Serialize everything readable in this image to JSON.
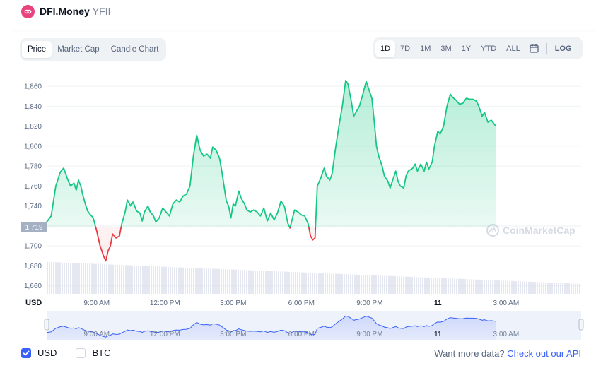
{
  "header": {
    "coin_name": "DFI.Money",
    "coin_symbol": "YFII"
  },
  "chart_tabs": [
    {
      "label": "Price",
      "active": true
    },
    {
      "label": "Market Cap",
      "active": false
    },
    {
      "label": "Candle Chart",
      "active": false
    }
  ],
  "range_tabs": [
    {
      "label": "1D",
      "active": true
    },
    {
      "label": "7D",
      "active": false
    },
    {
      "label": "1M",
      "active": false
    },
    {
      "label": "3M",
      "active": false
    },
    {
      "label": "1Y",
      "active": false
    },
    {
      "label": "YTD",
      "active": false
    },
    {
      "label": "ALL",
      "active": false
    }
  ],
  "log_label": "LOG",
  "icons": {
    "logo": "dfi-money-logo-icon",
    "calendar": "calendar-icon",
    "checkmark": "checkmark-icon"
  },
  "colors": {
    "up": "#16c784",
    "down": "#ea3943",
    "volume": "#cfd6e4",
    "navigator": "#3861fb",
    "accent": "#3861fb"
  },
  "watermark": "CoinMarketCap",
  "footer": {
    "currencies": [
      {
        "label": "USD",
        "checked": true
      },
      {
        "label": "BTC",
        "checked": false
      }
    ],
    "more_data_text": "Want more data?",
    "api_link_text": "Check out our API"
  },
  "chart_data": {
    "type": "area",
    "ylabel": "USD",
    "y_ticks": [
      1660,
      1680,
      1700,
      1720,
      1740,
      1760,
      1780,
      1800,
      1820,
      1840,
      1860
    ],
    "y_tick_labels": [
      "1,660",
      "1,680",
      "1,700",
      "1,720",
      "1,740",
      "1,760",
      "1,780",
      "1,800",
      "1,820",
      "1,840",
      "1,860"
    ],
    "ylim": [
      1652,
      1870
    ],
    "baseline": 1719,
    "baseline_label": "1,719",
    "x_ticks": [
      {
        "label": "9:00 AM",
        "t": 2.5,
        "bold": false
      },
      {
        "label": "12:00 PM",
        "t": 5.5,
        "bold": false
      },
      {
        "label": "3:00 PM",
        "t": 8.5,
        "bold": false
      },
      {
        "label": "6:00 PM",
        "t": 11.5,
        "bold": false
      },
      {
        "label": "9:00 PM",
        "t": 14.5,
        "bold": false
      },
      {
        "label": "11",
        "t": 17.5,
        "bold": true
      },
      {
        "label": "3:00 AM",
        "t": 20.5,
        "bold": false
      }
    ],
    "xlim": [
      0.3,
      23.8
    ],
    "grid": true,
    "price": [
      [
        0.3,
        1724
      ],
      [
        0.5,
        1730
      ],
      [
        0.7,
        1760
      ],
      [
        0.9,
        1774
      ],
      [
        1.05,
        1778
      ],
      [
        1.2,
        1768
      ],
      [
        1.35,
        1760
      ],
      [
        1.5,
        1763
      ],
      [
        1.6,
        1756
      ],
      [
        1.7,
        1766
      ],
      [
        1.8,
        1760
      ],
      [
        1.9,
        1750
      ],
      [
        2.0,
        1742
      ],
      [
        2.1,
        1735
      ],
      [
        2.2,
        1732
      ],
      [
        2.35,
        1728
      ],
      [
        2.5,
        1715
      ],
      [
        2.65,
        1700
      ],
      [
        2.8,
        1690
      ],
      [
        2.9,
        1685
      ],
      [
        3.0,
        1695
      ],
      [
        3.1,
        1700
      ],
      [
        3.2,
        1712
      ],
      [
        3.35,
        1708
      ],
      [
        3.5,
        1710
      ],
      [
        3.6,
        1722
      ],
      [
        3.75,
        1734
      ],
      [
        3.85,
        1746
      ],
      [
        4.0,
        1740
      ],
      [
        4.1,
        1744
      ],
      [
        4.25,
        1735
      ],
      [
        4.4,
        1733
      ],
      [
        4.5,
        1725
      ],
      [
        4.6,
        1734
      ],
      [
        4.75,
        1740
      ],
      [
        4.85,
        1734
      ],
      [
        5.0,
        1730
      ],
      [
        5.1,
        1724
      ],
      [
        5.25,
        1728
      ],
      [
        5.4,
        1738
      ],
      [
        5.55,
        1734
      ],
      [
        5.7,
        1730
      ],
      [
        5.85,
        1742
      ],
      [
        6.0,
        1746
      ],
      [
        6.15,
        1744
      ],
      [
        6.3,
        1750
      ],
      [
        6.45,
        1752
      ],
      [
        6.6,
        1760
      ],
      [
        6.75,
        1790
      ],
      [
        6.9,
        1811
      ],
      [
        7.05,
        1796
      ],
      [
        7.2,
        1790
      ],
      [
        7.35,
        1792
      ],
      [
        7.5,
        1788
      ],
      [
        7.6,
        1799
      ],
      [
        7.75,
        1796
      ],
      [
        7.9,
        1788
      ],
      [
        8.0,
        1775
      ],
      [
        8.1,
        1760
      ],
      [
        8.2,
        1745
      ],
      [
        8.3,
        1740
      ],
      [
        8.4,
        1728
      ],
      [
        8.5,
        1742
      ],
      [
        8.6,
        1740
      ],
      [
        8.75,
        1755
      ],
      [
        8.85,
        1748
      ],
      [
        9.0,
        1742
      ],
      [
        9.1,
        1736
      ],
      [
        9.25,
        1734
      ],
      [
        9.4,
        1736
      ],
      [
        9.55,
        1734
      ],
      [
        9.7,
        1730
      ],
      [
        9.85,
        1738
      ],
      [
        10.0,
        1725
      ],
      [
        10.15,
        1733
      ],
      [
        10.3,
        1726
      ],
      [
        10.45,
        1733
      ],
      [
        10.6,
        1745
      ],
      [
        10.75,
        1740
      ],
      [
        10.9,
        1723
      ],
      [
        11.0,
        1718
      ],
      [
        11.1,
        1727
      ],
      [
        11.2,
        1736
      ],
      [
        11.35,
        1734
      ],
      [
        11.5,
        1731
      ],
      [
        11.65,
        1730
      ],
      [
        11.8,
        1722
      ],
      [
        11.9,
        1710
      ],
      [
        12.0,
        1706
      ],
      [
        12.1,
        1708
      ],
      [
        12.2,
        1760
      ],
      [
        12.35,
        1768
      ],
      [
        12.5,
        1778
      ],
      [
        12.6,
        1770
      ],
      [
        12.75,
        1766
      ],
      [
        12.85,
        1772
      ],
      [
        13.0,
        1798
      ],
      [
        13.15,
        1820
      ],
      [
        13.3,
        1840
      ],
      [
        13.45,
        1866
      ],
      [
        13.55,
        1862
      ],
      [
        13.7,
        1844
      ],
      [
        13.8,
        1830
      ],
      [
        13.9,
        1834
      ],
      [
        14.05,
        1840
      ],
      [
        14.2,
        1852
      ],
      [
        14.35,
        1865
      ],
      [
        14.45,
        1858
      ],
      [
        14.6,
        1848
      ],
      [
        14.7,
        1825
      ],
      [
        14.8,
        1800
      ],
      [
        14.9,
        1790
      ],
      [
        15.05,
        1780
      ],
      [
        15.15,
        1770
      ],
      [
        15.3,
        1765
      ],
      [
        15.4,
        1758
      ],
      [
        15.5,
        1765
      ],
      [
        15.65,
        1775
      ],
      [
        15.75,
        1765
      ],
      [
        15.85,
        1760
      ],
      [
        16.0,
        1758
      ],
      [
        16.1,
        1770
      ],
      [
        16.2,
        1775
      ],
      [
        16.4,
        1778
      ],
      [
        16.5,
        1782
      ],
      [
        16.6,
        1775
      ],
      [
        16.75,
        1782
      ],
      [
        16.9,
        1775
      ],
      [
        17.0,
        1784
      ],
      [
        17.1,
        1777
      ],
      [
        17.25,
        1784
      ],
      [
        17.35,
        1800
      ],
      [
        17.5,
        1815
      ],
      [
        17.6,
        1812
      ],
      [
        17.75,
        1820
      ],
      [
        17.9,
        1840
      ],
      [
        18.05,
        1852
      ],
      [
        18.15,
        1849
      ],
      [
        18.3,
        1846
      ],
      [
        18.45,
        1842
      ],
      [
        18.6,
        1843
      ],
      [
        18.75,
        1848
      ],
      [
        18.9,
        1847
      ],
      [
        19.05,
        1847
      ],
      [
        19.2,
        1845
      ],
      [
        19.3,
        1840
      ],
      [
        19.45,
        1830
      ],
      [
        19.55,
        1834
      ],
      [
        19.7,
        1824
      ],
      [
        19.85,
        1826
      ],
      [
        19.95,
        1823
      ],
      [
        20.05,
        1820
      ]
    ],
    "volume_range": [
      1684,
      1662
    ],
    "navigator_labels": [
      "9:00 AM",
      "12:00 PM",
      "3:00 PM",
      "6:00 PM",
      "9:00 PM",
      "11",
      "3:00 AM"
    ]
  }
}
